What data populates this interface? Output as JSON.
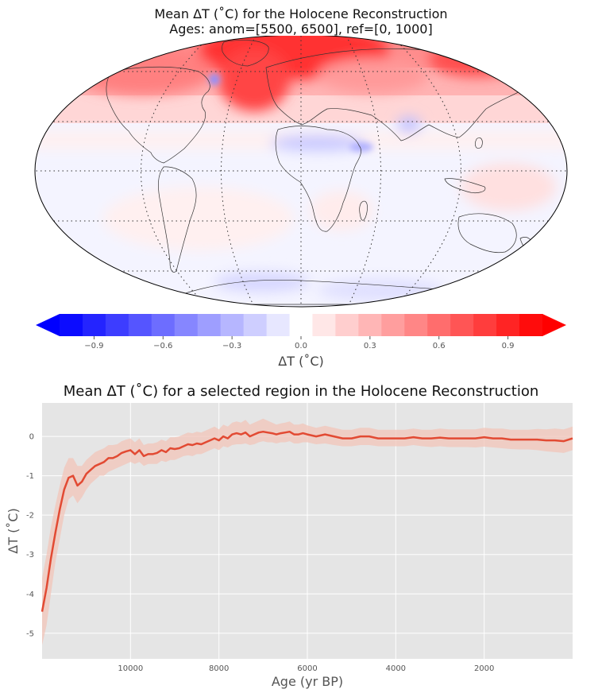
{
  "map": {
    "title_line1": "Mean ΔT (˚C) for the Holocene Reconstruction",
    "title_line2": "Ages: anom=[5500, 6500], ref=[0, 1000]",
    "projection": "Robinson",
    "gridlines": "dotted"
  },
  "colorbar": {
    "label": "ΔT (˚C)",
    "ticks": [
      "−0.9",
      "−0.6",
      "−0.3",
      "0.0",
      "0.3",
      "0.6",
      "0.9"
    ],
    "tick_values": [
      -0.9,
      -0.6,
      -0.3,
      0.0,
      0.3,
      0.6,
      0.9
    ],
    "range": [
      -1.05,
      1.05
    ],
    "n_bins": 21,
    "extend": "both",
    "colormap": "bwr",
    "colors": [
      "#0000ff",
      "#ff0000"
    ]
  },
  "chart_data": {
    "type": "line",
    "title": "Mean ΔT (˚C) for a selected region in the Holocene Reconstruction",
    "xlabel": "Age (yr BP)",
    "ylabel": "ΔT (˚C)",
    "xlim": [
      12000,
      0
    ],
    "ylim": [
      -5.65,
      0.85
    ],
    "x_ticks": [
      10000,
      8000,
      6000,
      4000,
      2000
    ],
    "y_ticks": [
      0,
      -1,
      -2,
      -3,
      -4,
      -5
    ],
    "grid": true,
    "line_color": "#e24a33",
    "band_color": "#f2c4b8",
    "series": [
      {
        "x": [
          12000,
          11900,
          11800,
          11700,
          11600,
          11500,
          11400,
          11300,
          11200,
          11100,
          11000,
          10900,
          10800,
          10700,
          10600,
          10500,
          10400,
          10300,
          10200,
          10100,
          10000,
          9900,
          9800,
          9700,
          9600,
          9500,
          9400,
          9300,
          9200,
          9100,
          9000,
          8900,
          8800,
          8700,
          8600,
          8500,
          8400,
          8300,
          8200,
          8100,
          8000,
          7900,
          7800,
          7700,
          7600,
          7500,
          7400,
          7300,
          7200,
          7100,
          7000,
          6900,
          6800,
          6700,
          6600,
          6500,
          6400,
          6300,
          6200,
          6100,
          6000,
          5800,
          5600,
          5400,
          5200,
          5000,
          4800,
          4600,
          4400,
          4200,
          4000,
          3800,
          3600,
          3400,
          3200,
          3000,
          2800,
          2600,
          2400,
          2200,
          2000,
          1800,
          1600,
          1400,
          1200,
          1000,
          800,
          600,
          400,
          200,
          0
        ],
        "mean": [
          -4.45,
          -3.85,
          -3.1,
          -2.45,
          -1.85,
          -1.35,
          -1.05,
          -1.0,
          -1.25,
          -1.15,
          -0.95,
          -0.85,
          -0.75,
          -0.7,
          -0.65,
          -0.55,
          -0.55,
          -0.5,
          -0.42,
          -0.38,
          -0.35,
          -0.45,
          -0.35,
          -0.5,
          -0.45,
          -0.45,
          -0.42,
          -0.35,
          -0.4,
          -0.3,
          -0.32,
          -0.3,
          -0.25,
          -0.2,
          -0.22,
          -0.18,
          -0.2,
          -0.15,
          -0.1,
          -0.05,
          -0.1,
          0.0,
          -0.05,
          0.05,
          0.08,
          0.05,
          0.1,
          0.0,
          0.05,
          0.1,
          0.12,
          0.1,
          0.08,
          0.05,
          0.08,
          0.1,
          0.12,
          0.05,
          0.05,
          0.08,
          0.05,
          0.0,
          0.05,
          0.0,
          -0.05,
          -0.05,
          0.0,
          0.0,
          -0.05,
          -0.05,
          -0.05,
          -0.05,
          -0.02,
          -0.05,
          -0.05,
          -0.03,
          -0.05,
          -0.05,
          -0.05,
          -0.05,
          -0.02,
          -0.05,
          -0.05,
          -0.08,
          -0.08,
          -0.08,
          -0.08,
          -0.1,
          -0.1,
          -0.12,
          -0.05
        ],
        "lower": [
          -5.3,
          -4.8,
          -4.0,
          -3.2,
          -2.6,
          -2.0,
          -1.6,
          -1.5,
          -1.7,
          -1.55,
          -1.35,
          -1.2,
          -1.1,
          -1.0,
          -1.0,
          -0.9,
          -0.85,
          -0.8,
          -0.75,
          -0.7,
          -0.65,
          -0.7,
          -0.65,
          -0.75,
          -0.7,
          -0.7,
          -0.7,
          -0.62,
          -0.65,
          -0.6,
          -0.6,
          -0.55,
          -0.5,
          -0.48,
          -0.5,
          -0.45,
          -0.45,
          -0.4,
          -0.35,
          -0.3,
          -0.35,
          -0.25,
          -0.28,
          -0.22,
          -0.2,
          -0.2,
          -0.18,
          -0.22,
          -0.2,
          -0.15,
          -0.12,
          -0.15,
          -0.15,
          -0.18,
          -0.15,
          -0.15,
          -0.12,
          -0.18,
          -0.18,
          -0.15,
          -0.15,
          -0.2,
          -0.18,
          -0.22,
          -0.25,
          -0.25,
          -0.22,
          -0.22,
          -0.25,
          -0.25,
          -0.25,
          -0.25,
          -0.22,
          -0.25,
          -0.27,
          -0.25,
          -0.27,
          -0.27,
          -0.27,
          -0.28,
          -0.26,
          -0.28,
          -0.3,
          -0.32,
          -0.33,
          -0.33,
          -0.35,
          -0.38,
          -0.4,
          -0.42,
          -0.35
        ],
        "upper": [
          -3.6,
          -3.0,
          -2.3,
          -1.75,
          -1.25,
          -0.8,
          -0.55,
          -0.55,
          -0.75,
          -0.75,
          -0.6,
          -0.5,
          -0.4,
          -0.35,
          -0.3,
          -0.22,
          -0.22,
          -0.2,
          -0.12,
          -0.08,
          -0.05,
          -0.15,
          -0.05,
          -0.22,
          -0.18,
          -0.18,
          -0.15,
          -0.08,
          -0.12,
          -0.02,
          -0.02,
          0.0,
          0.05,
          0.1,
          0.08,
          0.12,
          0.1,
          0.15,
          0.2,
          0.25,
          0.18,
          0.3,
          0.25,
          0.35,
          0.38,
          0.35,
          0.42,
          0.3,
          0.35,
          0.4,
          0.45,
          0.4,
          0.35,
          0.3,
          0.33,
          0.35,
          0.38,
          0.3,
          0.3,
          0.33,
          0.28,
          0.22,
          0.27,
          0.22,
          0.17,
          0.17,
          0.22,
          0.22,
          0.17,
          0.17,
          0.17,
          0.17,
          0.2,
          0.17,
          0.17,
          0.2,
          0.18,
          0.18,
          0.18,
          0.18,
          0.22,
          0.2,
          0.2,
          0.17,
          0.17,
          0.17,
          0.19,
          0.18,
          0.2,
          0.18,
          0.25
        ]
      }
    ]
  }
}
